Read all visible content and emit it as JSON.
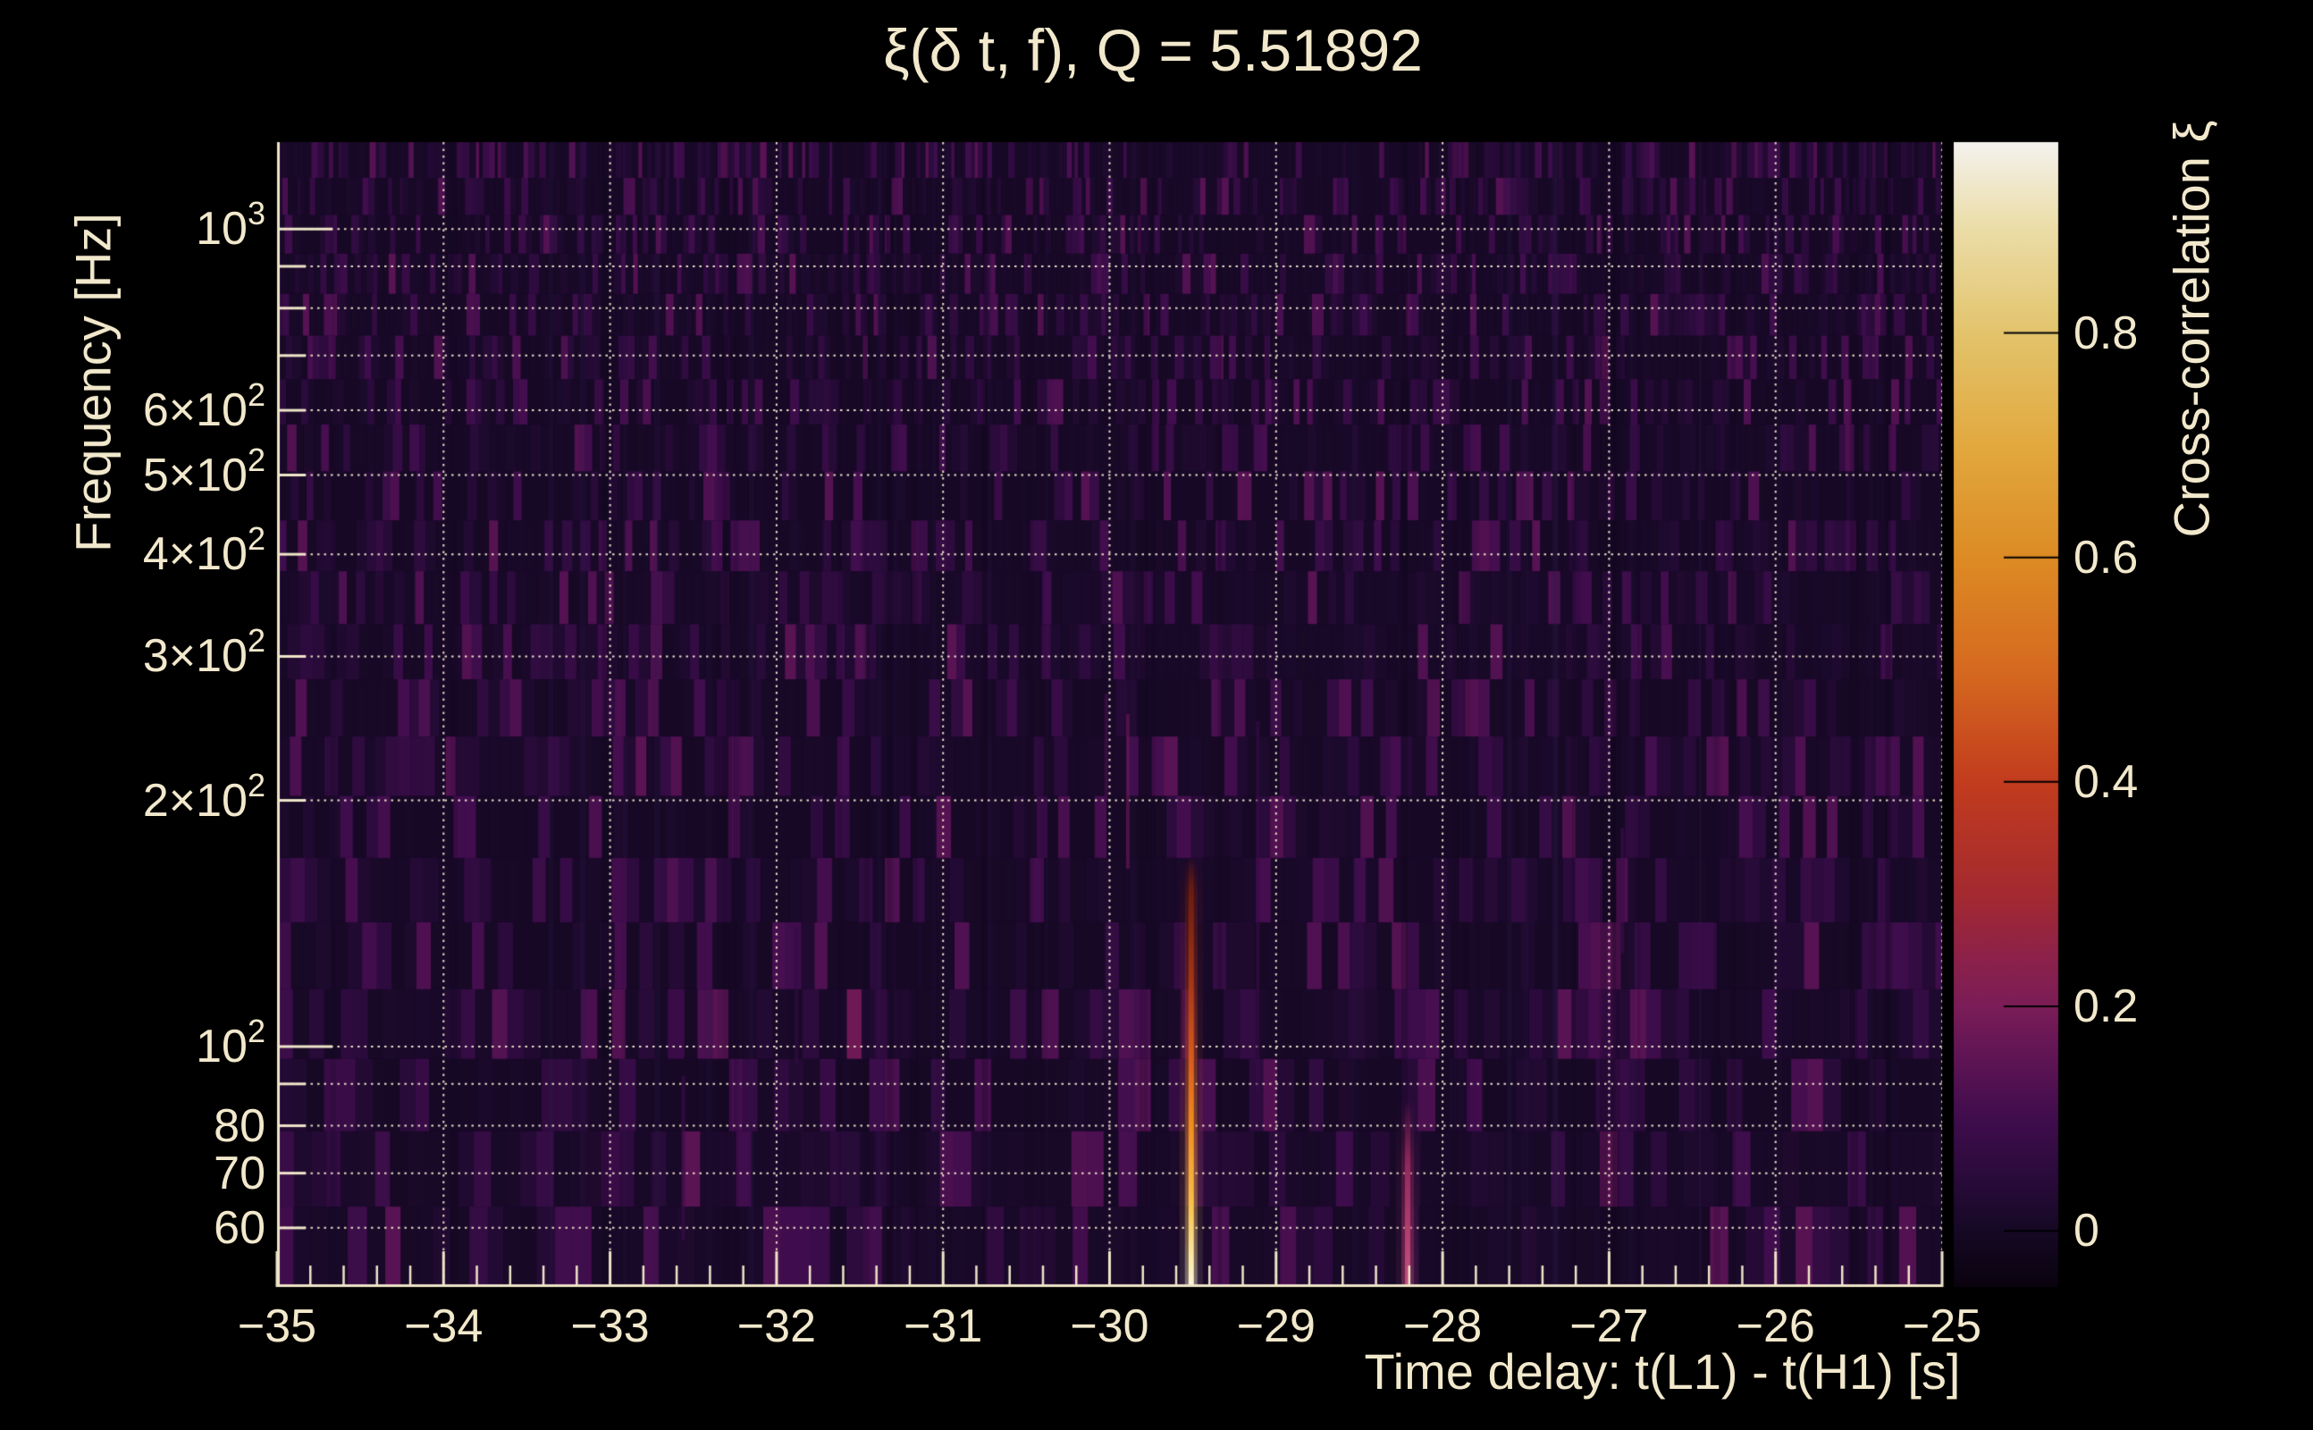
{
  "window": {
    "background": "#000000",
    "text_color": "#f2e8cc",
    "axis_color": "#efe5c9",
    "grid_color": "rgba(243,233,208,0.95)"
  },
  "chart_data": {
    "type": "heatmap",
    "title": "ξ(δ t, f), Q = 5.51892",
    "xlabel": "Time delay: t(L1) - t(H1) [s]",
    "ylabel": "Frequency [Hz]",
    "colorbar_label": "Cross-correlation ξ",
    "x_axis": {
      "range": [
        -35,
        -25
      ],
      "minor_tick_step": 0.2,
      "grid": true,
      "ticks": [
        {
          "value": -35,
          "label": "−35"
        },
        {
          "value": -34,
          "label": "−34"
        },
        {
          "value": -33,
          "label": "−33"
        },
        {
          "value": -32,
          "label": "−32"
        },
        {
          "value": -31,
          "label": "−31"
        },
        {
          "value": -30,
          "label": "−30"
        },
        {
          "value": -29,
          "label": "−29"
        },
        {
          "value": -28,
          "label": "−28"
        },
        {
          "value": -27,
          "label": "−27"
        },
        {
          "value": -26,
          "label": "−26"
        },
        {
          "value": -25,
          "label": "−25"
        }
      ]
    },
    "y_axis": {
      "scale": "log",
      "range": [
        50.8,
        1277
      ],
      "grid": true,
      "ticks": [
        {
          "value": 1000,
          "base": "10",
          "sup": "3",
          "major": true
        },
        {
          "value": 900,
          "base": "",
          "sup": ""
        },
        {
          "value": 800,
          "base": "",
          "sup": ""
        },
        {
          "value": 700,
          "base": "",
          "sup": ""
        },
        {
          "value": 600,
          "base": "6×10",
          "sup": "2"
        },
        {
          "value": 500,
          "base": "5×10",
          "sup": "2"
        },
        {
          "value": 400,
          "base": "4×10",
          "sup": "2"
        },
        {
          "value": 300,
          "base": "3×10",
          "sup": "2"
        },
        {
          "value": 200,
          "base": "2×10",
          "sup": "2"
        },
        {
          "value": 100,
          "base": "10",
          "sup": "2",
          "major": true
        },
        {
          "value": 90,
          "base": "",
          "sup": ""
        },
        {
          "value": 80,
          "base": "80",
          "sup": ""
        },
        {
          "value": 70,
          "base": "70",
          "sup": ""
        },
        {
          "value": 60,
          "base": "60",
          "sup": ""
        }
      ]
    },
    "colorbar": {
      "range": [
        -0.05,
        0.97
      ],
      "ticks": [
        {
          "value": 0.8,
          "label": "0.8"
        },
        {
          "value": 0.6,
          "label": "0.6"
        },
        {
          "value": 0.4,
          "label": "0.4"
        },
        {
          "value": 0.2,
          "label": "0.2"
        },
        {
          "value": 0.0,
          "label": "0"
        }
      ],
      "gradient": [
        {
          "v": -0.05,
          "c": "#0a030e"
        },
        {
          "v": 0.0,
          "c": "#160925"
        },
        {
          "v": 0.05,
          "c": "#2b0b3c"
        },
        {
          "v": 0.1,
          "c": "#400d4d"
        },
        {
          "v": 0.15,
          "c": "#5d1454"
        },
        {
          "v": 0.2,
          "c": "#7b1d58"
        },
        {
          "v": 0.25,
          "c": "#8f2247"
        },
        {
          "v": 0.3,
          "c": "#a42a30"
        },
        {
          "v": 0.4,
          "c": "#c23c1e"
        },
        {
          "v": 0.5,
          "c": "#d66a20"
        },
        {
          "v": 0.6,
          "c": "#dd8b24"
        },
        {
          "v": 0.7,
          "c": "#e2a93f"
        },
        {
          "v": 0.8,
          "c": "#e3c46c"
        },
        {
          "v": 0.9,
          "c": "#ecdfad"
        },
        {
          "v": 0.97,
          "c": "#f4f2ee"
        }
      ]
    },
    "features": [
      {
        "name": "primary-correlation-stripe",
        "t": -29.51,
        "f_range": [
          50.8,
          170
        ],
        "peak_value": 0.92,
        "gradient": [
          {
            "p": 0.0,
            "c": "rgba(107,28,14,0)"
          },
          {
            "p": 0.08,
            "c": "#6b1c0e"
          },
          {
            "p": 0.28,
            "c": "#a33414"
          },
          {
            "p": 0.46,
            "c": "#d55a1c"
          },
          {
            "p": 0.62,
            "c": "#ef8c1f"
          },
          {
            "p": 0.8,
            "c": "#f8bf48"
          },
          {
            "p": 0.93,
            "c": "#fbe8a2"
          },
          {
            "p": 1.0,
            "c": "#fdf6dc"
          }
        ]
      },
      {
        "name": "secondary-correlation-stripe",
        "t": -28.21,
        "f_range": [
          50.8,
          86
        ],
        "peak_value": 0.3,
        "gradient": [
          {
            "p": 0.0,
            "c": "rgba(124,32,80,0)"
          },
          {
            "p": 0.35,
            "c": "#93295e"
          },
          {
            "p": 0.75,
            "c": "#b84170"
          },
          {
            "p": 1.0,
            "c": "#c3527c"
          }
        ]
      }
    ],
    "minor_features": [
      {
        "t": -29.89,
        "f_range": [
          165,
          255
        ],
        "value": 0.17
      },
      {
        "t": -29.11,
        "f_range": [
          88,
          250
        ],
        "value": 0.08
      },
      {
        "t": -32.56,
        "f_range": [
          58,
          92
        ],
        "value": 0.09
      },
      {
        "t": -31.88,
        "f_range": [
          95,
          140
        ],
        "value": 0.07
      },
      {
        "t": -26.92,
        "f_range": [
          130,
          185
        ],
        "value": 0.09
      },
      {
        "t": -30.02,
        "f_range": [
          200,
          270
        ],
        "value": 0.11
      }
    ],
    "noise": {
      "seed": 20,
      "base_value": 0.015,
      "max_value": 0.14,
      "coherent_columns": 55
    }
  }
}
